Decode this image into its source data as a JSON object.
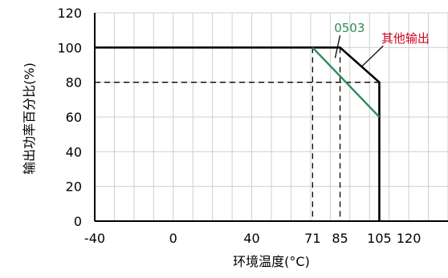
{
  "chart_data": {
    "type": "line",
    "xlabel": "环境温度(°C)",
    "ylabel": "输出功率百分比(%)",
    "x_ticks": [
      -40,
      0,
      40,
      71,
      85,
      105,
      120
    ],
    "y_ticks": [
      0,
      20,
      40,
      60,
      80,
      100,
      120
    ],
    "xlim": [
      -40,
      140
    ],
    "ylim": [
      0,
      120
    ],
    "grid": true,
    "series": [
      {
        "name": "其他输出",
        "color": "#000000",
        "style": "solid",
        "points": [
          [
            -40,
            100
          ],
          [
            85,
            100
          ],
          [
            105,
            80
          ],
          [
            105,
            0
          ]
        ]
      },
      {
        "name": "0503",
        "color": "#2e8b57",
        "style": "solid",
        "points": [
          [
            71,
            100
          ],
          [
            105,
            60
          ]
        ]
      }
    ],
    "reference_lines": [
      {
        "style": "dashed",
        "points": [
          [
            -40,
            80
          ],
          [
            105,
            80
          ]
        ]
      },
      {
        "style": "dashed",
        "points": [
          [
            71,
            100
          ],
          [
            71,
            0
          ]
        ]
      },
      {
        "style": "dashed",
        "points": [
          [
            85,
            100
          ],
          [
            85,
            0
          ]
        ]
      }
    ],
    "annotations": [
      {
        "text": "0503",
        "color": "#2e8b57",
        "at": [
          82,
          109
        ]
      },
      {
        "text": "其他输出",
        "color": "#d0021b",
        "at": [
          106,
          103
        ]
      }
    ]
  }
}
